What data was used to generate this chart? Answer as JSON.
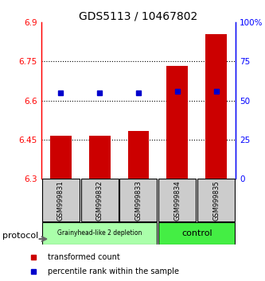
{
  "title": "GDS5113 / 10467802",
  "samples": [
    "GSM999831",
    "GSM999832",
    "GSM999833",
    "GSM999834",
    "GSM999835"
  ],
  "bar_values": [
    6.463,
    6.463,
    6.483,
    6.733,
    6.855
  ],
  "percentile_values": [
    6.628,
    6.628,
    6.628,
    6.635,
    6.635
  ],
  "bar_bottom": 6.3,
  "ylim": [
    6.3,
    6.9
  ],
  "yticks": [
    6.3,
    6.45,
    6.6,
    6.75,
    6.9
  ],
  "ytick_labels": [
    "6.3",
    "6.45",
    "6.6",
    "6.75",
    "6.9"
  ],
  "y2_ticks": [
    0,
    25,
    50,
    75,
    100
  ],
  "y2_labels": [
    "0",
    "25",
    "50",
    "75",
    "100%"
  ],
  "bar_color": "#cc0000",
  "percentile_color": "#0000cc",
  "group1_samples": [
    0,
    1,
    2
  ],
  "group2_samples": [
    3,
    4
  ],
  "group1_label": "Grainyhead-like 2 depletion",
  "group2_label": "control",
  "group1_color": "#aaffaa",
  "group2_color": "#44ee44",
  "group_box_color": "#cccccc",
  "legend_bar_label": "transformed count",
  "legend_pct_label": "percentile rank within the sample",
  "protocol_label": "protocol",
  "bar_width": 0.55
}
